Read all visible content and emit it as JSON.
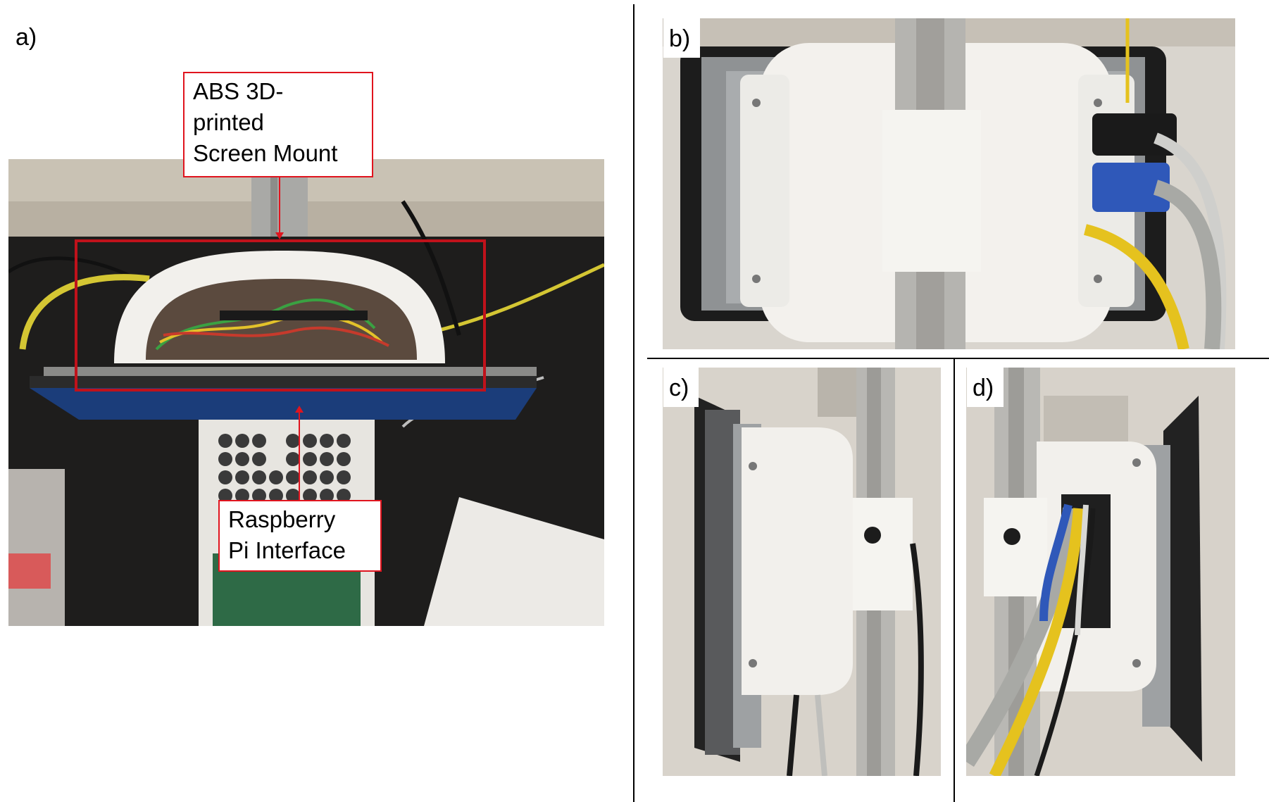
{
  "panels": {
    "a": {
      "label": "a)"
    },
    "b": {
      "label": "b)"
    },
    "c": {
      "label": "c)"
    },
    "d": {
      "label": "d)"
    }
  },
  "callouts": {
    "mount": {
      "text": "ABS 3D-\nprinted\nScreen Mount"
    },
    "interface": {
      "text": "Raspberry\nPi Interface"
    }
  },
  "colors": {
    "annotation_red": "#e0141e",
    "box_red": "#c0121b"
  }
}
